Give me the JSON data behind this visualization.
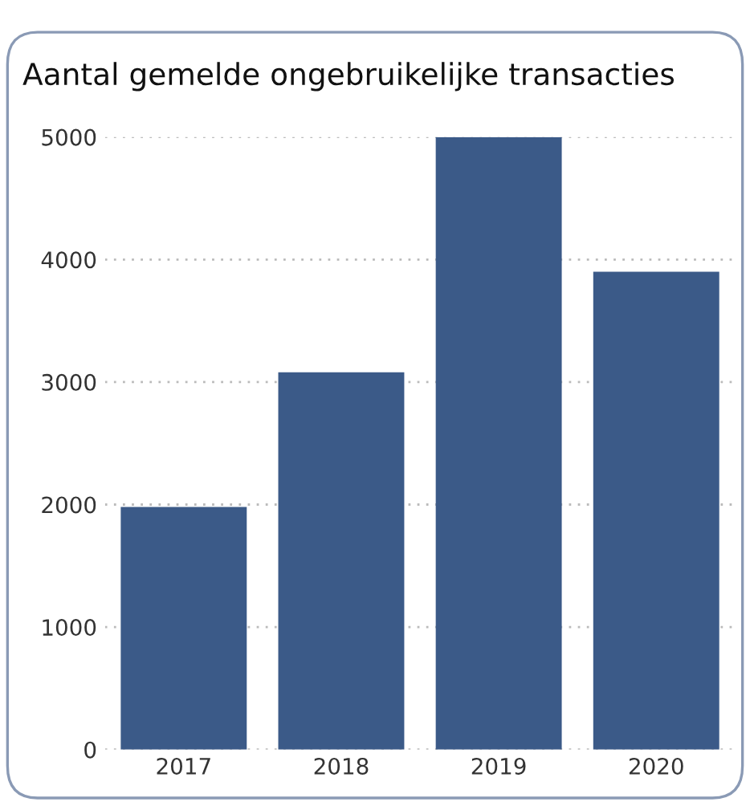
{
  "chart_data": {
    "type": "bar",
    "title": "Aantal gemelde ongebruikelijke transacties",
    "categories": [
      "2017",
      "2018",
      "2019",
      "2020"
    ],
    "values": [
      1980,
      3080,
      5000,
      3900
    ],
    "color": "#3b5a88",
    "ylim": [
      0,
      5000
    ],
    "yticks": [
      0,
      1000,
      2000,
      3000,
      4000,
      5000
    ],
    "grid": "y"
  }
}
